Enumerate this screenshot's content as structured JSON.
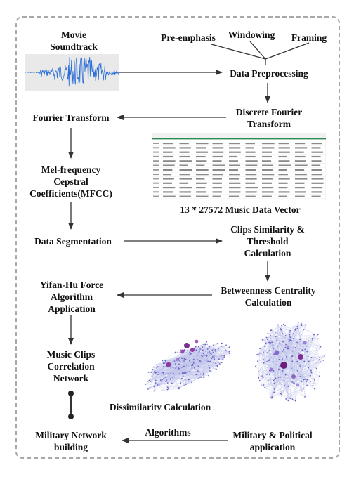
{
  "nodes": {
    "movie": "Movie\nSoundtrack",
    "pre_emphasis": "Pre-emphasis",
    "windowing": "Windowing",
    "framing": "Framing",
    "data_preprocessing": "Data Preprocessing",
    "dft": "Discrete Fourier\nTransform",
    "fourier": "Fourier Transform",
    "mfcc": "Mel-frequency\nCepstral\nCoefficients(MFCC)",
    "music_vector": "13 * 27572 Music Data Vector",
    "segmentation": "Data Segmentation",
    "similarity": "Clips Similarity &\nThreshold\nCalculation",
    "yifan": "Yifan-Hu Force\nAlgorithm\nApplication",
    "betweenness": "Betweenness Centrality\nCalculation",
    "correlation": "Music Clips\nCorrelation\nNetwork",
    "dissimilarity": "Dissimilarity Calculation",
    "military_network": "Military Network\nbuilding",
    "algorithms": "Algorithms",
    "military_political": "Military & Political\napplication"
  }
}
